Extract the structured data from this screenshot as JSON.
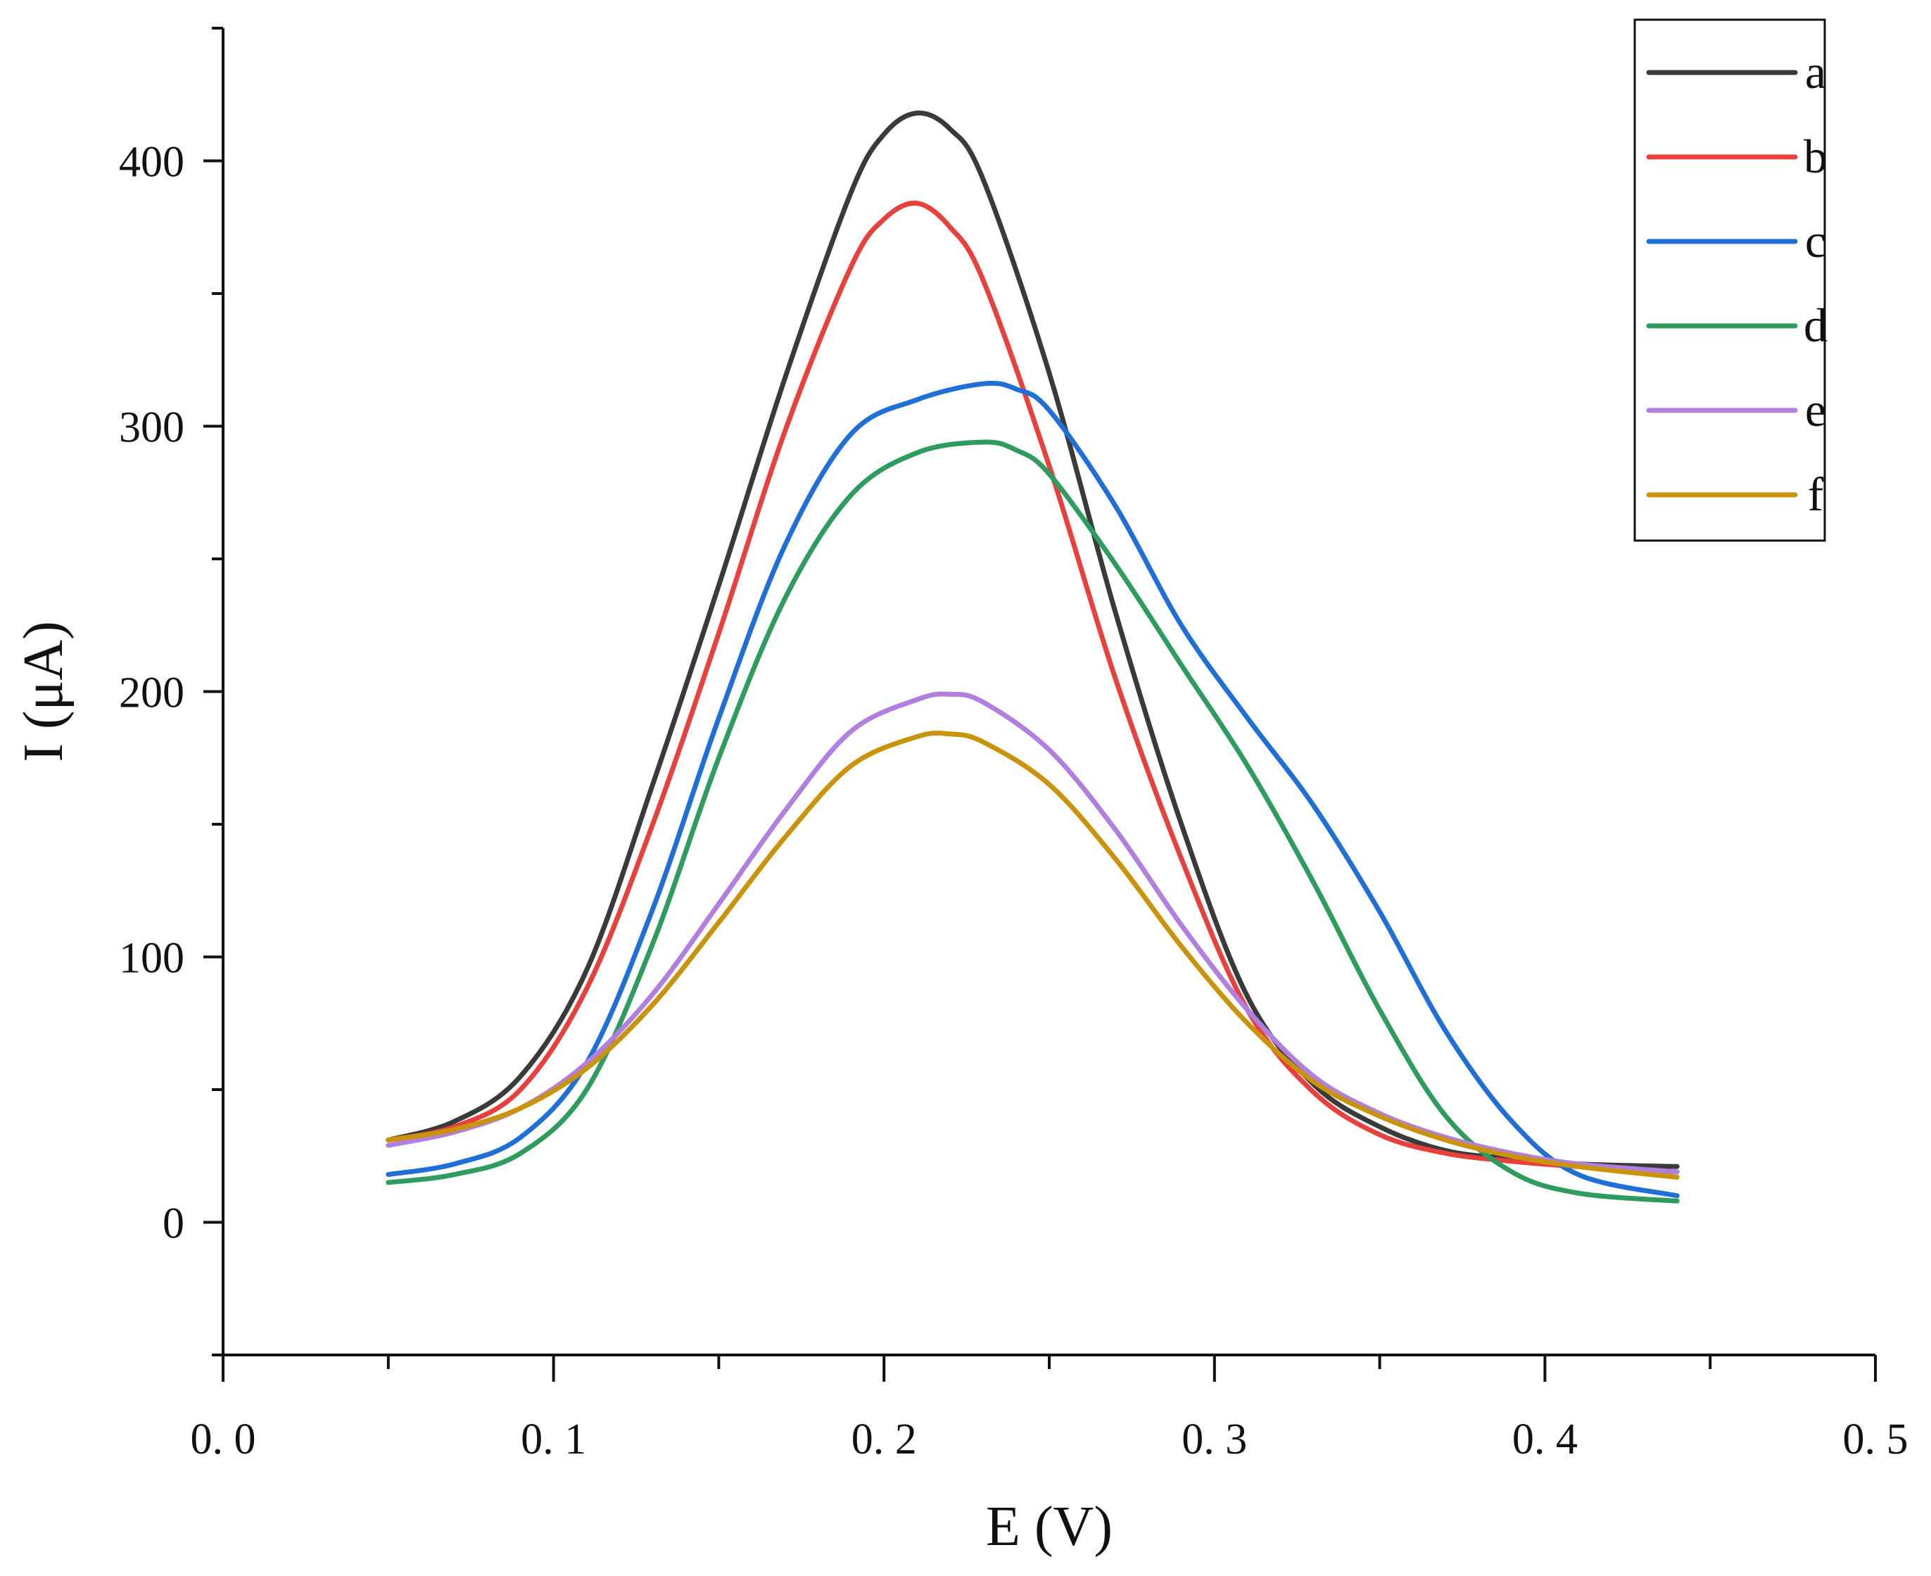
{
  "chart_data": {
    "type": "line",
    "title": "",
    "xlabel": "E (V)",
    "ylabel": "I (μA)",
    "xlim": [
      0.0,
      0.5
    ],
    "ylim": [
      -50,
      450
    ],
    "xticks": [
      0.0,
      0.1,
      0.2,
      0.3,
      0.4,
      0.5
    ],
    "xtick_labels": [
      "0. 0",
      "0. 1",
      "0. 2",
      "0. 3",
      "0. 4",
      "0. 5"
    ],
    "yticks": [
      0,
      100,
      200,
      300,
      400
    ],
    "ytick_labels": [
      "0",
      "100",
      "200",
      "300",
      "400"
    ],
    "grid": false,
    "legend_position": "top-right",
    "series": [
      {
        "name": "a",
        "color": "#3a3a3a",
        "x": [
          0.05,
          0.07,
          0.09,
          0.11,
          0.13,
          0.15,
          0.17,
          0.19,
          0.2,
          0.21,
          0.22,
          0.23,
          0.25,
          0.27,
          0.29,
          0.31,
          0.33,
          0.35,
          0.37,
          0.39,
          0.41,
          0.44
        ],
        "y": [
          31,
          38,
          55,
          95,
          165,
          240,
          318,
          388,
          410,
          418,
          412,
          393,
          320,
          230,
          150,
          85,
          52,
          36,
          27,
          24,
          22,
          21
        ]
      },
      {
        "name": "b",
        "color": "#e8413d",
        "x": [
          0.05,
          0.07,
          0.09,
          0.11,
          0.13,
          0.15,
          0.17,
          0.19,
          0.2,
          0.21,
          0.22,
          0.23,
          0.25,
          0.27,
          0.29,
          0.31,
          0.33,
          0.35,
          0.37,
          0.39,
          0.41,
          0.44
        ],
        "y": [
          31,
          36,
          50,
          88,
          150,
          222,
          298,
          360,
          378,
          384,
          375,
          355,
          285,
          205,
          137,
          80,
          49,
          33,
          26,
          23,
          21,
          19
        ]
      },
      {
        "name": "c",
        "color": "#1f6fd6",
        "x": [
          0.05,
          0.07,
          0.09,
          0.11,
          0.13,
          0.15,
          0.17,
          0.19,
          0.21,
          0.23,
          0.24,
          0.25,
          0.27,
          0.29,
          0.31,
          0.33,
          0.35,
          0.37,
          0.39,
          0.41,
          0.44
        ],
        "y": [
          18,
          22,
          32,
          60,
          118,
          190,
          255,
          297,
          310,
          316,
          314,
          306,
          270,
          225,
          190,
          157,
          117,
          72,
          38,
          18,
          10
        ]
      },
      {
        "name": "d",
        "color": "#2e9c5e",
        "x": [
          0.05,
          0.07,
          0.09,
          0.11,
          0.13,
          0.15,
          0.17,
          0.19,
          0.21,
          0.23,
          0.24,
          0.25,
          0.27,
          0.29,
          0.31,
          0.33,
          0.35,
          0.37,
          0.39,
          0.41,
          0.44
        ],
        "y": [
          15,
          18,
          26,
          50,
          105,
          175,
          235,
          274,
          290,
          294,
          291,
          282,
          248,
          210,
          172,
          128,
          80,
          40,
          19,
          11,
          8
        ]
      },
      {
        "name": "e",
        "color": "#b07fe0",
        "x": [
          0.05,
          0.07,
          0.09,
          0.11,
          0.13,
          0.15,
          0.17,
          0.19,
          0.21,
          0.22,
          0.23,
          0.25,
          0.27,
          0.29,
          0.31,
          0.33,
          0.35,
          0.37,
          0.39,
          0.41,
          0.44
        ],
        "y": [
          29,
          34,
          43,
          60,
          86,
          120,
          155,
          185,
          197,
          199,
          196,
          178,
          148,
          112,
          80,
          55,
          41,
          32,
          26,
          22,
          19
        ]
      },
      {
        "name": "f",
        "color": "#c9940c",
        "x": [
          0.05,
          0.07,
          0.09,
          0.11,
          0.13,
          0.15,
          0.17,
          0.19,
          0.21,
          0.22,
          0.23,
          0.25,
          0.27,
          0.29,
          0.31,
          0.33,
          0.35,
          0.37,
          0.39,
          0.41,
          0.44
        ],
        "y": [
          31,
          35,
          43,
          58,
          82,
          113,
          145,
          172,
          183,
          184,
          181,
          165,
          137,
          104,
          75,
          53,
          40,
          31,
          25,
          21,
          17
        ]
      }
    ]
  }
}
